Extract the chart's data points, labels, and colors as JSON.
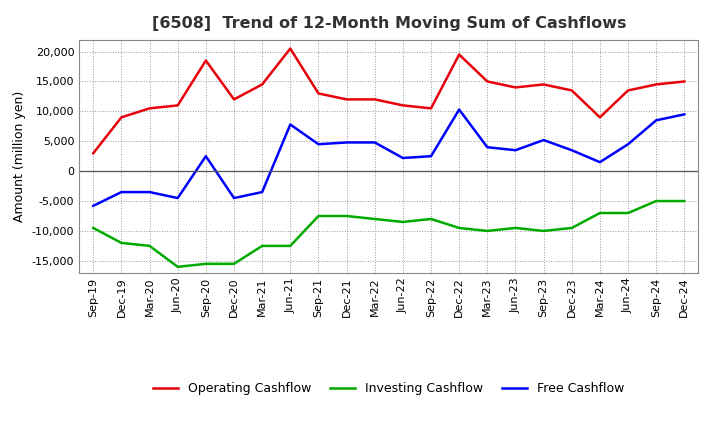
{
  "title": "[6508]  Trend of 12-Month Moving Sum of Cashflows",
  "ylabel": "Amount (million yen)",
  "ylim": [
    -17000,
    22000
  ],
  "yticks": [
    -15000,
    -10000,
    -5000,
    0,
    5000,
    10000,
    15000,
    20000
  ],
  "x_labels": [
    "Sep-19",
    "Dec-19",
    "Mar-20",
    "Jun-20",
    "Sep-20",
    "Dec-20",
    "Mar-21",
    "Jun-21",
    "Sep-21",
    "Dec-21",
    "Mar-22",
    "Jun-22",
    "Sep-22",
    "Dec-22",
    "Mar-23",
    "Jun-23",
    "Sep-23",
    "Dec-23",
    "Mar-24",
    "Jun-24",
    "Sep-24",
    "Dec-24"
  ],
  "operating": [
    3000,
    9000,
    10500,
    11000,
    18500,
    12000,
    14500,
    20500,
    13000,
    12000,
    12000,
    11000,
    10500,
    19500,
    15000,
    14000,
    14500,
    13500,
    9000,
    13500,
    14500,
    15000
  ],
  "investing": [
    -9500,
    -12000,
    -12500,
    -16000,
    -15500,
    -15500,
    -12500,
    -12500,
    -7500,
    -7500,
    -8000,
    -8500,
    -8000,
    -9500,
    -10000,
    -9500,
    -10000,
    -9500,
    -7000,
    -7000,
    -5000,
    -5000
  ],
  "free": [
    -5800,
    -3500,
    -3500,
    -4500,
    2500,
    -4500,
    -3500,
    7800,
    4500,
    4800,
    4800,
    2200,
    2500,
    10300,
    4000,
    3500,
    5200,
    3500,
    1500,
    4500,
    8500,
    9500
  ],
  "operating_color": "#e8000d",
  "investing_color": "#00aa00",
  "free_color": "#0000ff",
  "background_color": "#ffffff",
  "plot_bg_color": "#ffffff",
  "grid_color": "#999999",
  "line_width": 1.8,
  "title_fontsize": 11.5,
  "legend_fontsize": 9,
  "tick_fontsize": 8,
  "ylabel_fontsize": 9
}
